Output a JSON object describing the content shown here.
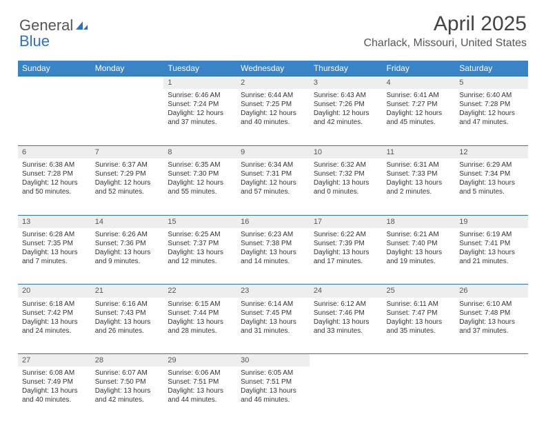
{
  "brand": {
    "part1": "General",
    "part2": "Blue"
  },
  "title": "April 2025",
  "location": "Charlack, Missouri, United States",
  "colors": {
    "header_bg": "#3b83c7",
    "row_rule": "#2e6fa8",
    "daynum_bg": "#eeeeee",
    "text": "#333333"
  },
  "typography": {
    "title_fontsize": 30,
    "location_fontsize": 16,
    "dayhead_fontsize": 12,
    "cell_fontsize": 10
  },
  "day_headers": [
    "Sunday",
    "Monday",
    "Tuesday",
    "Wednesday",
    "Thursday",
    "Friday",
    "Saturday"
  ],
  "weeks": [
    [
      null,
      null,
      {
        "n": "1",
        "sr": "6:46 AM",
        "ss": "7:24 PM",
        "dl": "12 hours and 37 minutes."
      },
      {
        "n": "2",
        "sr": "6:44 AM",
        "ss": "7:25 PM",
        "dl": "12 hours and 40 minutes."
      },
      {
        "n": "3",
        "sr": "6:43 AM",
        "ss": "7:26 PM",
        "dl": "12 hours and 42 minutes."
      },
      {
        "n": "4",
        "sr": "6:41 AM",
        "ss": "7:27 PM",
        "dl": "12 hours and 45 minutes."
      },
      {
        "n": "5",
        "sr": "6:40 AM",
        "ss": "7:28 PM",
        "dl": "12 hours and 47 minutes."
      }
    ],
    [
      {
        "n": "6",
        "sr": "6:38 AM",
        "ss": "7:28 PM",
        "dl": "12 hours and 50 minutes."
      },
      {
        "n": "7",
        "sr": "6:37 AM",
        "ss": "7:29 PM",
        "dl": "12 hours and 52 minutes."
      },
      {
        "n": "8",
        "sr": "6:35 AM",
        "ss": "7:30 PM",
        "dl": "12 hours and 55 minutes."
      },
      {
        "n": "9",
        "sr": "6:34 AM",
        "ss": "7:31 PM",
        "dl": "12 hours and 57 minutes."
      },
      {
        "n": "10",
        "sr": "6:32 AM",
        "ss": "7:32 PM",
        "dl": "13 hours and 0 minutes."
      },
      {
        "n": "11",
        "sr": "6:31 AM",
        "ss": "7:33 PM",
        "dl": "13 hours and 2 minutes."
      },
      {
        "n": "12",
        "sr": "6:29 AM",
        "ss": "7:34 PM",
        "dl": "13 hours and 5 minutes."
      }
    ],
    [
      {
        "n": "13",
        "sr": "6:28 AM",
        "ss": "7:35 PM",
        "dl": "13 hours and 7 minutes."
      },
      {
        "n": "14",
        "sr": "6:26 AM",
        "ss": "7:36 PM",
        "dl": "13 hours and 9 minutes."
      },
      {
        "n": "15",
        "sr": "6:25 AM",
        "ss": "7:37 PM",
        "dl": "13 hours and 12 minutes."
      },
      {
        "n": "16",
        "sr": "6:23 AM",
        "ss": "7:38 PM",
        "dl": "13 hours and 14 minutes."
      },
      {
        "n": "17",
        "sr": "6:22 AM",
        "ss": "7:39 PM",
        "dl": "13 hours and 17 minutes."
      },
      {
        "n": "18",
        "sr": "6:21 AM",
        "ss": "7:40 PM",
        "dl": "13 hours and 19 minutes."
      },
      {
        "n": "19",
        "sr": "6:19 AM",
        "ss": "7:41 PM",
        "dl": "13 hours and 21 minutes."
      }
    ],
    [
      {
        "n": "20",
        "sr": "6:18 AM",
        "ss": "7:42 PM",
        "dl": "13 hours and 24 minutes."
      },
      {
        "n": "21",
        "sr": "6:16 AM",
        "ss": "7:43 PM",
        "dl": "13 hours and 26 minutes."
      },
      {
        "n": "22",
        "sr": "6:15 AM",
        "ss": "7:44 PM",
        "dl": "13 hours and 28 minutes."
      },
      {
        "n": "23",
        "sr": "6:14 AM",
        "ss": "7:45 PM",
        "dl": "13 hours and 31 minutes."
      },
      {
        "n": "24",
        "sr": "6:12 AM",
        "ss": "7:46 PM",
        "dl": "13 hours and 33 minutes."
      },
      {
        "n": "25",
        "sr": "6:11 AM",
        "ss": "7:47 PM",
        "dl": "13 hours and 35 minutes."
      },
      {
        "n": "26",
        "sr": "6:10 AM",
        "ss": "7:48 PM",
        "dl": "13 hours and 37 minutes."
      }
    ],
    [
      {
        "n": "27",
        "sr": "6:08 AM",
        "ss": "7:49 PM",
        "dl": "13 hours and 40 minutes."
      },
      {
        "n": "28",
        "sr": "6:07 AM",
        "ss": "7:50 PM",
        "dl": "13 hours and 42 minutes."
      },
      {
        "n": "29",
        "sr": "6:06 AM",
        "ss": "7:51 PM",
        "dl": "13 hours and 44 minutes."
      },
      {
        "n": "30",
        "sr": "6:05 AM",
        "ss": "7:51 PM",
        "dl": "13 hours and 46 minutes."
      },
      null,
      null,
      null
    ]
  ],
  "labels": {
    "sunrise": "Sunrise:",
    "sunset": "Sunset:",
    "daylight": "Daylight:"
  }
}
